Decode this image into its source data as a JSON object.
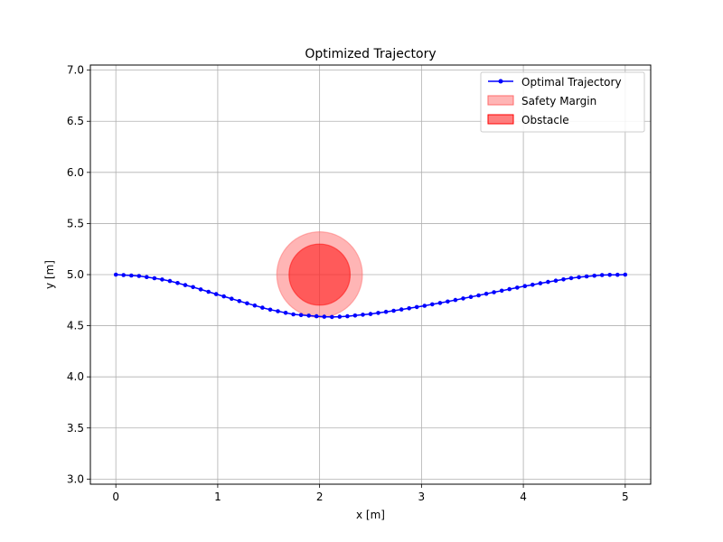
{
  "chart_data": {
    "type": "line",
    "title": "Optimized Trajectory",
    "xlabel": "x [m]",
    "ylabel": "y [m]",
    "xlim": [
      -0.25,
      5.25
    ],
    "ylim": [
      2.95,
      7.05
    ],
    "xticks": [
      0,
      1,
      2,
      3,
      4,
      5
    ],
    "yticks": [
      3.0,
      3.5,
      4.0,
      4.5,
      5.0,
      5.5,
      6.0,
      6.5,
      7.0
    ],
    "xtick_labels": [
      "0",
      "1",
      "2",
      "3",
      "4",
      "5"
    ],
    "ytick_labels": [
      "3.0",
      "3.5",
      "4.0",
      "4.5",
      "5.0",
      "5.5",
      "6.0",
      "6.5",
      "7.0"
    ],
    "grid": true,
    "legend_position": "top-right",
    "series": [
      {
        "name": "Optimal Trajectory",
        "color": "#0000ff",
        "marker": "dot",
        "x": [
          0.0,
          0.25,
          0.5,
          0.75,
          1.0,
          1.25,
          1.5,
          1.75,
          2.0,
          2.125,
          2.25,
          2.5,
          2.75,
          3.0,
          3.25,
          3.5,
          3.75,
          4.0,
          4.25,
          4.5,
          4.75,
          5.0
        ],
        "y": [
          5.0,
          4.985,
          4.945,
          4.88,
          4.805,
          4.73,
          4.66,
          4.61,
          4.59,
          4.585,
          4.59,
          4.615,
          4.65,
          4.69,
          4.735,
          4.785,
          4.835,
          4.885,
          4.93,
          4.97,
          4.995,
          5.0
        ]
      }
    ],
    "shapes": [
      {
        "name": "Safety Margin",
        "kind": "circle",
        "cx": 2.0,
        "cy": 5.0,
        "r": 0.42,
        "color": "#ff6b6b",
        "opacity": 0.5
      },
      {
        "name": "Obstacle",
        "kind": "circle",
        "cx": 2.0,
        "cy": 5.0,
        "r": 0.3,
        "color": "#ff0000",
        "opacity": 0.5
      }
    ],
    "legend": [
      "Optimal Trajectory",
      "Safety Margin",
      "Obstacle"
    ]
  }
}
